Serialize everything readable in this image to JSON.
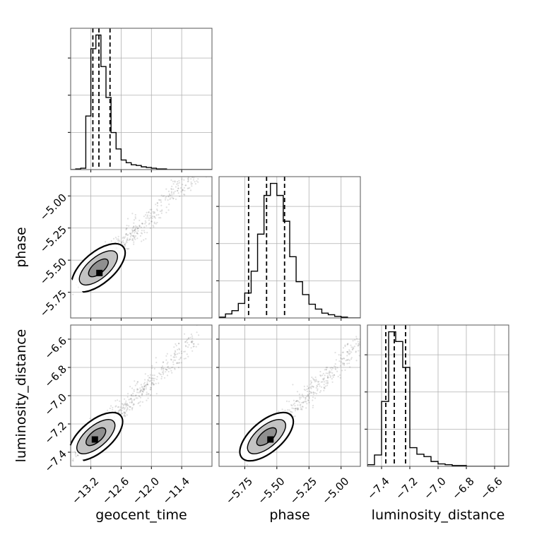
{
  "chart_data": {
    "type": "corner",
    "grid": true,
    "parameters": [
      "geocent_time",
      "phase",
      "luminosity_distance"
    ],
    "axes": {
      "geocent_time": {
        "label": "geocent_time",
        "range": [
          -13.6,
          -10.8
        ],
        "ticks": [
          -13.2,
          -12.6,
          -12.0,
          -11.4
        ],
        "tick_labels": [
          "−13.2",
          "−12.6",
          "−12.0",
          "−11.4"
        ]
      },
      "phase": {
        "label": "phase",
        "range": [
          -5.95,
          -4.85
        ],
        "ticks": [
          -5.75,
          -5.5,
          -5.25,
          -5.0
        ],
        "tick_labels": [
          "−5.75",
          "−5.50",
          "−5.25",
          "−5.00"
        ]
      },
      "luminosity_distance": {
        "label": "luminosity_distance",
        "range": [
          -7.5,
          -6.5
        ],
        "ticks": [
          -7.4,
          -7.2,
          -7.0,
          -6.8,
          -6.6
        ],
        "tick_labels": [
          "−7.4",
          "−7.2",
          "−7.0",
          "−6.8",
          "−6.6"
        ]
      }
    },
    "histograms": {
      "geocent_time": {
        "bin_edges": [
          -13.6,
          -13.5,
          -13.4,
          -13.3,
          -13.2,
          -13.1,
          -13.0,
          -12.9,
          -12.8,
          -12.7,
          -12.6,
          -12.5,
          -12.4,
          -12.3,
          -12.2,
          -12.1,
          -12.0,
          -11.9,
          -11.8,
          -11.7,
          -11.6,
          -11.5,
          -11.4,
          -11.3,
          -11.2,
          -11.1,
          -11.0,
          -10.9,
          -10.8
        ],
        "counts": [
          0,
          1,
          2,
          78,
          176,
          196,
          150,
          105,
          54,
          30,
          14,
          10,
          7,
          6,
          4,
          3,
          2,
          1,
          1,
          0,
          0,
          0,
          0,
          0,
          0,
          0,
          0,
          0
        ],
        "quantiles": [
          -13.16,
          -13.04,
          -12.82
        ]
      },
      "phase": {
        "bin_edges": [
          -5.95,
          -5.9,
          -5.85,
          -5.8,
          -5.75,
          -5.7,
          -5.65,
          -5.6,
          -5.55,
          -5.5,
          -5.45,
          -5.4,
          -5.35,
          -5.3,
          -5.25,
          -5.2,
          -5.15,
          -5.1,
          -5.05,
          -5.0,
          -4.95,
          -4.9,
          -4.85
        ],
        "counts": [
          1,
          5,
          9,
          18,
          31,
          58,
          104,
          152,
          167,
          152,
          120,
          76,
          45,
          29,
          17,
          11,
          6,
          4,
          2,
          1,
          0,
          0
        ],
        "quantiles": [
          -5.72,
          -5.58,
          -5.44
        ]
      },
      "luminosity_distance": {
        "bin_edges": [
          -7.5,
          -7.45,
          -7.4,
          -7.35,
          -7.3,
          -7.25,
          -7.2,
          -7.15,
          -7.1,
          -7.05,
          -7.0,
          -6.95,
          -6.9,
          -6.85,
          -6.8,
          -6.75,
          -6.7,
          -6.65,
          -6.6,
          -6.55,
          -6.5
        ],
        "counts": [
          2,
          14,
          80,
          166,
          154,
          122,
          23,
          15,
          12,
          6,
          3,
          2,
          1,
          1,
          0,
          0,
          0,
          0,
          0,
          0
        ],
        "quantiles": [
          -7.37,
          -7.31,
          -7.23
        ]
      }
    },
    "pairs": [
      {
        "x": "geocent_time",
        "y": "phase",
        "center": [
          -13.05,
          -5.56
        ],
        "peak": [
          -13.03,
          -5.6
        ]
      },
      {
        "x": "geocent_time",
        "y": "luminosity_distance",
        "center": [
          -13.1,
          -7.29
        ],
        "peak": [
          -13.12,
          -7.31
        ]
      },
      {
        "x": "phase",
        "y": "luminosity_distance",
        "center": [
          -5.58,
          -7.29
        ],
        "peak": [
          -5.55,
          -7.31
        ]
      }
    ]
  },
  "colors": {
    "line": "#000000",
    "grid": "#b0b0b0",
    "scatter": "#000000",
    "fill_light": "#ffffff",
    "fill_mid": "#bdbdbd",
    "fill_dark": "#8a8a8a",
    "peak": "#000000"
  }
}
